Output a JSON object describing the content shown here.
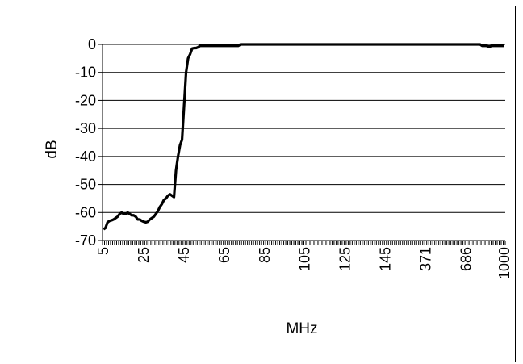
{
  "chart_data": {
    "type": "line",
    "title": "",
    "xlabel": "MHz",
    "ylabel": "dB",
    "ylim": [
      -70,
      0
    ],
    "yticks": [
      0,
      -10,
      -20,
      -30,
      -40,
      -50,
      -60,
      -70
    ],
    "ytick_labels": [
      "0",
      "-10",
      "-20",
      "-30",
      "-40",
      "-50",
      "-60",
      "-70"
    ],
    "x_categorical": true,
    "x_count": 200,
    "xtick_labels": [
      {
        "index": 0,
        "label": "5"
      },
      {
        "index": 20,
        "label": "25"
      },
      {
        "index": 40,
        "label": "45"
      },
      {
        "index": 60,
        "label": "65"
      },
      {
        "index": 80,
        "label": "85"
      },
      {
        "index": 100,
        "label": "105"
      },
      {
        "index": 120,
        "label": "125"
      },
      {
        "index": 140,
        "label": "145"
      },
      {
        "index": 160,
        "label": "371"
      },
      {
        "index": 180,
        "label": "686"
      },
      {
        "index": 199,
        "label": "1000"
      }
    ],
    "grid": "horizontal",
    "legend": "none",
    "series": [
      {
        "color": "#000000",
        "points": [
          [
            0,
            -66
          ],
          [
            1,
            -65.5
          ],
          [
            2,
            -63.5
          ],
          [
            3,
            -63
          ],
          [
            4,
            -62.8
          ],
          [
            5,
            -62.5
          ],
          [
            6,
            -62
          ],
          [
            7,
            -61.5
          ],
          [
            8,
            -60.5
          ],
          [
            9,
            -60
          ],
          [
            10,
            -60.5
          ],
          [
            11,
            -60.5
          ],
          [
            12,
            -60
          ],
          [
            13,
            -60.5
          ],
          [
            14,
            -61
          ],
          [
            15,
            -61
          ],
          [
            16,
            -61.5
          ],
          [
            17,
            -62.5
          ],
          [
            18,
            -62.5
          ],
          [
            19,
            -63
          ],
          [
            20,
            -63.3
          ],
          [
            21,
            -63.5
          ],
          [
            22,
            -63.3
          ],
          [
            23,
            -62.5
          ],
          [
            24,
            -62
          ],
          [
            25,
            -61.5
          ],
          [
            26,
            -60.5
          ],
          [
            27,
            -59.5
          ],
          [
            28,
            -58
          ],
          [
            29,
            -57
          ],
          [
            30,
            -55.5
          ],
          [
            31,
            -55
          ],
          [
            32,
            -54
          ],
          [
            33,
            -53.5
          ],
          [
            34,
            -54
          ],
          [
            35,
            -54.5
          ],
          [
            36,
            -45
          ],
          [
            37,
            -40
          ],
          [
            38,
            -36
          ],
          [
            39,
            -34
          ],
          [
            40,
            -22
          ],
          [
            41,
            -10
          ],
          [
            42,
            -5
          ],
          [
            43,
            -3.5
          ],
          [
            44,
            -1.5
          ],
          [
            45,
            -1.3
          ],
          [
            46,
            -1.3
          ],
          [
            47,
            -1
          ],
          [
            48,
            -0.5
          ],
          [
            49,
            -0.5
          ],
          [
            50,
            -0.5
          ],
          [
            51,
            -0.5
          ],
          [
            52,
            -0.5
          ],
          [
            53,
            -0.5
          ],
          [
            54,
            -0.5
          ],
          [
            55,
            -0.5
          ],
          [
            56,
            -0.5
          ],
          [
            57,
            -0.5
          ],
          [
            58,
            -0.5
          ],
          [
            59,
            -0.5
          ],
          [
            60,
            -0.5
          ],
          [
            61,
            -0.5
          ],
          [
            62,
            -0.5
          ],
          [
            63,
            -0.5
          ],
          [
            64,
            -0.5
          ],
          [
            65,
            -0.5
          ],
          [
            66,
            -0.5
          ],
          [
            67,
            -0.5
          ],
          [
            68,
            0
          ],
          [
            70,
            0
          ],
          [
            80,
            0
          ],
          [
            90,
            0
          ],
          [
            100,
            0
          ],
          [
            110,
            0
          ],
          [
            120,
            0
          ],
          [
            130,
            0
          ],
          [
            140,
            0
          ],
          [
            150,
            0
          ],
          [
            160,
            0
          ],
          [
            170,
            0
          ],
          [
            180,
            0
          ],
          [
            185,
            0
          ],
          [
            187,
            0
          ],
          [
            188,
            -0.5
          ],
          [
            189,
            -0.5
          ],
          [
            190,
            -0.5
          ],
          [
            191,
            -0.7
          ],
          [
            192,
            -0.7
          ],
          [
            193,
            -0.5
          ],
          [
            194,
            -0.5
          ],
          [
            195,
            -0.5
          ],
          [
            196,
            -0.5
          ],
          [
            197,
            -0.5
          ],
          [
            198,
            -0.5
          ],
          [
            199,
            -0.5
          ]
        ]
      }
    ]
  }
}
